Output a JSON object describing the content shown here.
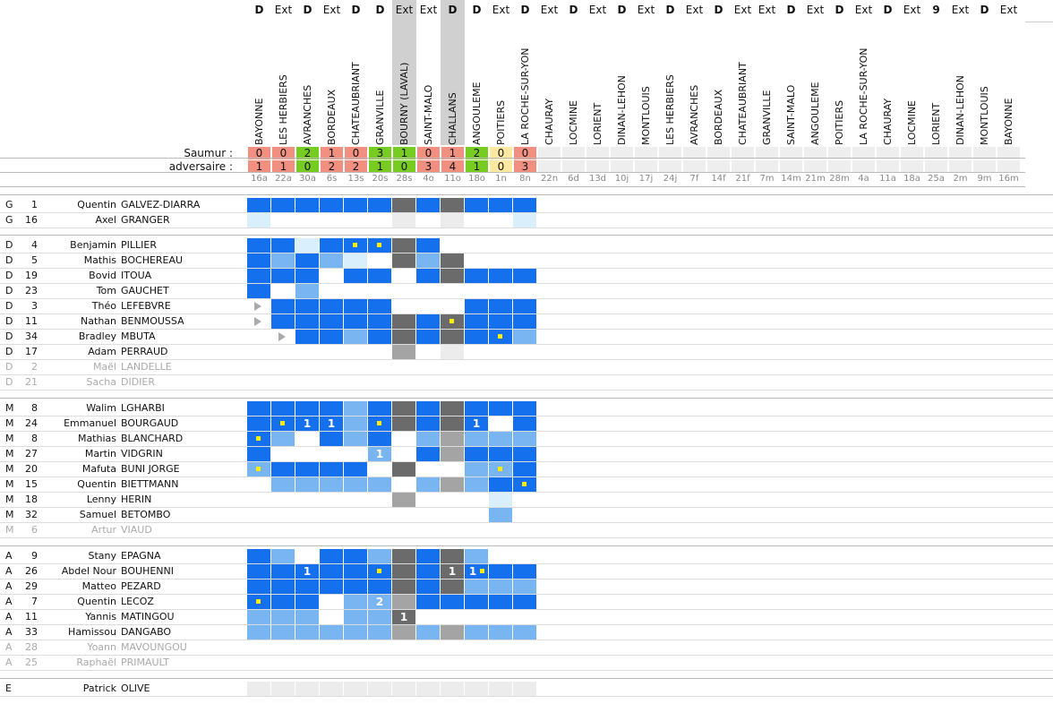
{
  "colors": {
    "win": "#77cc22",
    "loss": "#f19080",
    "draw": "#ffe8a0",
    "empty": "#eeeeee",
    "start": "#1570ee",
    "sub": "#79b5f0",
    "bench": "#d9f0fc",
    "dark": "#6b6b6b",
    "grey": "#a4a4a4",
    "light": "#ececec",
    "marker": "#ffee00"
  },
  "header": {
    "saumur_label": "Saumur :",
    "adversaire_label": "adversaire :"
  },
  "columns": [
    {
      "type": "D",
      "opponent": "BAYONNE",
      "saumur": "0",
      "adv": "1",
      "result": "loss",
      "date": "16a",
      "shade": false
    },
    {
      "type": "Ext",
      "opponent": "LES HERBIERS",
      "saumur": "0",
      "adv": "1",
      "result": "loss",
      "date": "22a",
      "shade": false
    },
    {
      "type": "D",
      "opponent": "AVRANCHES",
      "saumur": "2",
      "adv": "0",
      "result": "win",
      "date": "30a",
      "shade": false
    },
    {
      "type": "Ext",
      "opponent": "BORDEAUX",
      "saumur": "1",
      "adv": "2",
      "result": "loss",
      "date": "6s",
      "shade": false
    },
    {
      "type": "D",
      "opponent": "CHATEAUBRIANT",
      "saumur": "0",
      "adv": "2",
      "result": "loss",
      "date": "13s",
      "shade": false
    },
    {
      "type": "D",
      "opponent": "GRANVILLE",
      "saumur": "3",
      "adv": "1",
      "result": "win",
      "date": "20s",
      "shade": false
    },
    {
      "type": "Ext",
      "opponent": "BOURNY (LAVAL)",
      "saumur": "1",
      "adv": "0",
      "result": "win",
      "date": "28s",
      "shade": true
    },
    {
      "type": "Ext",
      "opponent": "SAINT-MALO",
      "saumur": "0",
      "adv": "3",
      "result": "loss",
      "date": "4o",
      "shade": false
    },
    {
      "type": "D",
      "opponent": "CHALLANS",
      "saumur": "1",
      "adv": "4",
      "result": "loss",
      "date": "11o",
      "shade": true
    },
    {
      "type": "D",
      "opponent": "ANGOULEME",
      "saumur": "2",
      "adv": "1",
      "result": "win",
      "date": "18o",
      "shade": false
    },
    {
      "type": "Ext",
      "opponent": "POITIERS",
      "saumur": "0",
      "adv": "0",
      "result": "draw",
      "date": "1n",
      "shade": false
    },
    {
      "type": "D",
      "opponent": "LA ROCHE-SUR-YON",
      "saumur": "0",
      "adv": "3",
      "result": "loss",
      "date": "8n",
      "shade": false
    },
    {
      "type": "Ext",
      "opponent": "CHAURAY",
      "saumur": "",
      "adv": "",
      "result": "none",
      "date": "22n",
      "shade": false
    },
    {
      "type": "D",
      "opponent": "LOCMINE",
      "saumur": "",
      "adv": "",
      "result": "none",
      "date": "6d",
      "shade": false
    },
    {
      "type": "Ext",
      "opponent": "LORIENT",
      "saumur": "",
      "adv": "",
      "result": "none",
      "date": "13d",
      "shade": false
    },
    {
      "type": "D",
      "opponent": "DINAN-LEHON",
      "saumur": "",
      "adv": "",
      "result": "none",
      "date": "10j",
      "shade": false
    },
    {
      "type": "Ext",
      "opponent": "MONTLOUIS",
      "saumur": "",
      "adv": "",
      "result": "none",
      "date": "17j",
      "shade": false
    },
    {
      "type": "D",
      "opponent": "LES HERBIERS",
      "saumur": "",
      "adv": "",
      "result": "none",
      "date": "24j",
      "shade": false
    },
    {
      "type": "Ext",
      "opponent": "AVRANCHES",
      "saumur": "",
      "adv": "",
      "result": "none",
      "date": "7f",
      "shade": false
    },
    {
      "type": "D",
      "opponent": "BORDEAUX",
      "saumur": "",
      "adv": "",
      "result": "none",
      "date": "14f",
      "shade": false
    },
    {
      "type": "Ext",
      "opponent": "CHATEAUBRIANT",
      "saumur": "",
      "adv": "",
      "result": "none",
      "date": "21f",
      "shade": false
    },
    {
      "type": "Ext",
      "opponent": "GRANVILLE",
      "saumur": "",
      "adv": "",
      "result": "none",
      "date": "7m",
      "shade": false
    },
    {
      "type": "D",
      "opponent": "SAINT-MALO",
      "saumur": "",
      "adv": "",
      "result": "none",
      "date": "14m",
      "shade": false
    },
    {
      "type": "Ext",
      "opponent": "ANGOULEME",
      "saumur": "",
      "adv": "",
      "result": "none",
      "date": "21m",
      "shade": false
    },
    {
      "type": "D",
      "opponent": "POITIERS",
      "saumur": "",
      "adv": "",
      "result": "none",
      "date": "28m",
      "shade": false
    },
    {
      "type": "Ext",
      "opponent": "LA ROCHE-SUR-YON",
      "saumur": "",
      "adv": "",
      "result": "none",
      "date": "4a",
      "shade": false
    },
    {
      "type": "D",
      "opponent": "CHAURAY",
      "saumur": "",
      "adv": "",
      "result": "none",
      "date": "11a",
      "shade": false
    },
    {
      "type": "Ext",
      "opponent": "LOCMINE",
      "saumur": "",
      "adv": "",
      "result": "none",
      "date": "18a",
      "shade": false
    },
    {
      "type": "9",
      "opponent": "LORIENT",
      "saumur": "",
      "adv": "",
      "result": "none",
      "date": "25a",
      "shade": false
    },
    {
      "type": "Ext",
      "opponent": "DINAN-LEHON",
      "saumur": "",
      "adv": "",
      "result": "none",
      "date": "2m",
      "shade": false
    },
    {
      "type": "D",
      "opponent": "MONTLOUIS",
      "saumur": "",
      "adv": "",
      "result": "none",
      "date": "9m",
      "shade": false
    },
    {
      "type": "Ext",
      "opponent": "BAYONNE",
      "saumur": "",
      "adv": "",
      "result": "none",
      "date": "16m",
      "shade": false
    }
  ],
  "groups": [
    {
      "players": [
        {
          "pos": "G",
          "num": "1",
          "first": "Quentin",
          "last": "GALVEZ-DIARRA",
          "active": true,
          "cells": [
            "S",
            "S",
            "S",
            "S",
            "S",
            "S",
            "K",
            "S",
            "K",
            "S",
            "S",
            "S"
          ]
        },
        {
          "pos": "G",
          "num": "16",
          "first": "Axel",
          "last": "GRANGER",
          "active": true,
          "cells": [
            "B",
            "",
            "",
            "",
            "",
            "",
            "L",
            "",
            "L",
            "",
            "",
            "B"
          ]
        }
      ]
    },
    {
      "players": [
        {
          "pos": "D",
          "num": "4",
          "first": "Benjamin",
          "last": "PILLIER",
          "active": true,
          "cells": [
            "S",
            "S",
            "B",
            "S",
            "S/y",
            "S/y",
            "K",
            "S",
            "",
            "",
            "",
            ""
          ]
        },
        {
          "pos": "D",
          "num": "5",
          "first": "Mathis",
          "last": "BOCHEREAU",
          "active": true,
          "cells": [
            "S",
            "U",
            "S",
            "U",
            "B",
            "",
            "K",
            "U",
            "K",
            "",
            "",
            ""
          ]
        },
        {
          "pos": "D",
          "num": "19",
          "first": "Bovid",
          "last": "ITOUA",
          "active": true,
          "cells": [
            "S",
            "S",
            "S",
            "",
            "S",
            "S",
            "",
            "S",
            "K",
            "S",
            "S",
            "S"
          ]
        },
        {
          "pos": "D",
          "num": "23",
          "first": "Tom",
          "last": "GAUCHET",
          "active": true,
          "cells": [
            "S",
            "",
            "U",
            "",
            "",
            "",
            "",
            "",
            "",
            "",
            "",
            ""
          ]
        },
        {
          "pos": "D",
          "num": "3",
          "first": "Théo",
          "last": "LEFEBVRE",
          "active": true,
          "cells": [
            "T",
            "S",
            "S",
            "S",
            "S",
            "S",
            "",
            "",
            "",
            "S",
            "S",
            "S"
          ]
        },
        {
          "pos": "D",
          "num": "11",
          "first": "Nathan",
          "last": "BENMOUSSA",
          "active": true,
          "cells": [
            "T",
            "S",
            "S",
            "S",
            "S",
            "S",
            "K",
            "S",
            "K/y",
            "S",
            "S",
            "S"
          ]
        },
        {
          "pos": "D",
          "num": "34",
          "first": "Bradley",
          "last": "MBUTA",
          "active": true,
          "cells": [
            "",
            "T",
            "S",
            "S",
            "U",
            "S",
            "K",
            "S",
            "K",
            "S",
            "S/y",
            "U"
          ]
        },
        {
          "pos": "D",
          "num": "17",
          "first": "Adam",
          "last": "PERRAUD",
          "active": true,
          "cells": [
            "",
            "",
            "",
            "",
            "",
            "",
            "G",
            "",
            "L",
            "",
            "",
            ""
          ]
        },
        {
          "pos": "D",
          "num": "2",
          "first": "Maël",
          "last": "LANDELLE",
          "active": false,
          "cells": [
            "",
            "",
            "",
            "",
            "",
            "",
            "",
            "",
            "",
            "",
            "",
            ""
          ]
        },
        {
          "pos": "D",
          "num": "21",
          "first": "Sacha",
          "last": "DIDIER",
          "active": false,
          "cells": [
            "",
            "",
            "",
            "",
            "",
            "",
            "",
            "",
            "",
            "",
            "",
            ""
          ]
        }
      ]
    },
    {
      "players": [
        {
          "pos": "M",
          "num": "8",
          "first": "Walim",
          "last": "LGHARBI",
          "active": true,
          "cells": [
            "S",
            "S",
            "S",
            "S",
            "U",
            "S",
            "K",
            "S",
            "K",
            "S",
            "S",
            "S"
          ]
        },
        {
          "pos": "M",
          "num": "24",
          "first": "Emmanuel",
          "last": "BOURGAUD",
          "active": true,
          "cells": [
            "S",
            "S/y",
            "S/1",
            "S/1",
            "U",
            "S/y",
            "K",
            "S",
            "K",
            "S/1",
            "",
            "S"
          ]
        },
        {
          "pos": "M",
          "num": "8",
          "first": "Mathias",
          "last": "BLANCHARD",
          "active": true,
          "cells": [
            "S/y",
            "U",
            "",
            "S",
            "U",
            "S",
            "",
            "U",
            "G",
            "U",
            "U",
            "U"
          ]
        },
        {
          "pos": "M",
          "num": "27",
          "first": "Martin",
          "last": "VIDGRIN",
          "active": true,
          "cells": [
            "S",
            "",
            "",
            "",
            "",
            "U/1",
            "",
            "S",
            "G",
            "S",
            "S",
            "S"
          ]
        },
        {
          "pos": "M",
          "num": "20",
          "first": "Mafuta",
          "last": "BUNI JORGE",
          "active": true,
          "cells": [
            "U/y",
            "S",
            "S",
            "S",
            "S",
            "",
            "K",
            "",
            "",
            "U",
            "U/y",
            "S"
          ]
        },
        {
          "pos": "M",
          "num": "15",
          "first": "Quentin",
          "last": "BIETTMANN",
          "active": true,
          "cells": [
            "",
            "U",
            "U",
            "U",
            "U",
            "U",
            "",
            "U",
            "G",
            "U",
            "S",
            "S/y"
          ]
        },
        {
          "pos": "M",
          "num": "18",
          "first": "Lenny",
          "last": "HERIN",
          "active": true,
          "cells": [
            "",
            "",
            "",
            "",
            "",
            "",
            "G",
            "",
            "",
            "",
            "B",
            ""
          ]
        },
        {
          "pos": "M",
          "num": "32",
          "first": "Samuel",
          "last": "BETOMBO",
          "active": true,
          "cells": [
            "",
            "",
            "",
            "",
            "",
            "",
            "",
            "",
            "",
            "",
            "U",
            ""
          ]
        },
        {
          "pos": "M",
          "num": "6",
          "first": "Artur",
          "last": "VIAUD",
          "active": false,
          "cells": [
            "",
            "",
            "",
            "",
            "",
            "",
            "",
            "",
            "",
            "",
            "",
            ""
          ]
        }
      ]
    },
    {
      "players": [
        {
          "pos": "A",
          "num": "9",
          "first": "Stany",
          "last": "EPAGNA",
          "active": true,
          "cells": [
            "S",
            "U",
            "",
            "S",
            "S",
            "U",
            "K",
            "S",
            "K",
            "U",
            "",
            ""
          ]
        },
        {
          "pos": "A",
          "num": "26",
          "first": "Abdel Nour",
          "last": "BOUHENNI",
          "active": true,
          "cells": [
            "S",
            "S",
            "S/1",
            "S",
            "S",
            "S/y",
            "K",
            "S",
            "K/1",
            "S/1y",
            "S",
            "S"
          ]
        },
        {
          "pos": "A",
          "num": "29",
          "first": "Matteo",
          "last": "PEZARD",
          "active": true,
          "cells": [
            "S",
            "S",
            "S",
            "S",
            "S",
            "S",
            "K",
            "S",
            "K",
            "U",
            "U",
            "U"
          ]
        },
        {
          "pos": "A",
          "num": "7",
          "first": "Quentin",
          "last": "LECOZ",
          "active": true,
          "cells": [
            "S/y",
            "S",
            "S",
            "",
            "U",
            "U/2",
            "G",
            "S",
            "S",
            "S",
            "S",
            "S"
          ]
        },
        {
          "pos": "A",
          "num": "11",
          "first": "Yannis",
          "last": "MATINGOU",
          "active": true,
          "cells": [
            "U",
            "U",
            "U",
            "",
            "U",
            "U",
            "K/1",
            "",
            "",
            "",
            "",
            ""
          ]
        },
        {
          "pos": "A",
          "num": "33",
          "first": "Hamissou",
          "last": "DANGABO",
          "active": true,
          "cells": [
            "U",
            "U",
            "U",
            "U",
            "U",
            "U",
            "G",
            "U",
            "G",
            "U",
            "U",
            "U"
          ]
        },
        {
          "pos": "A",
          "num": "28",
          "first": "Yoann",
          "last": "MAVOUNGOU",
          "active": false,
          "cells": [
            "",
            "",
            "",
            "",
            "",
            "",
            "",
            "",
            "",
            "",
            "",
            ""
          ]
        },
        {
          "pos": "A",
          "num": "25",
          "first": "Raphaël",
          "last": "PRIMAULT",
          "active": false,
          "cells": [
            "",
            "",
            "",
            "",
            "",
            "",
            "",
            "",
            "",
            "",
            "",
            ""
          ]
        }
      ]
    },
    {
      "players": [
        {
          "pos": "E",
          "num": "",
          "first": "Patrick",
          "last": "OLIVE",
          "active": true,
          "cells": [
            "L",
            "L",
            "L",
            "L",
            "L",
            "L",
            "L",
            "L",
            "L",
            "L",
            "L",
            "L"
          ]
        }
      ]
    }
  ]
}
